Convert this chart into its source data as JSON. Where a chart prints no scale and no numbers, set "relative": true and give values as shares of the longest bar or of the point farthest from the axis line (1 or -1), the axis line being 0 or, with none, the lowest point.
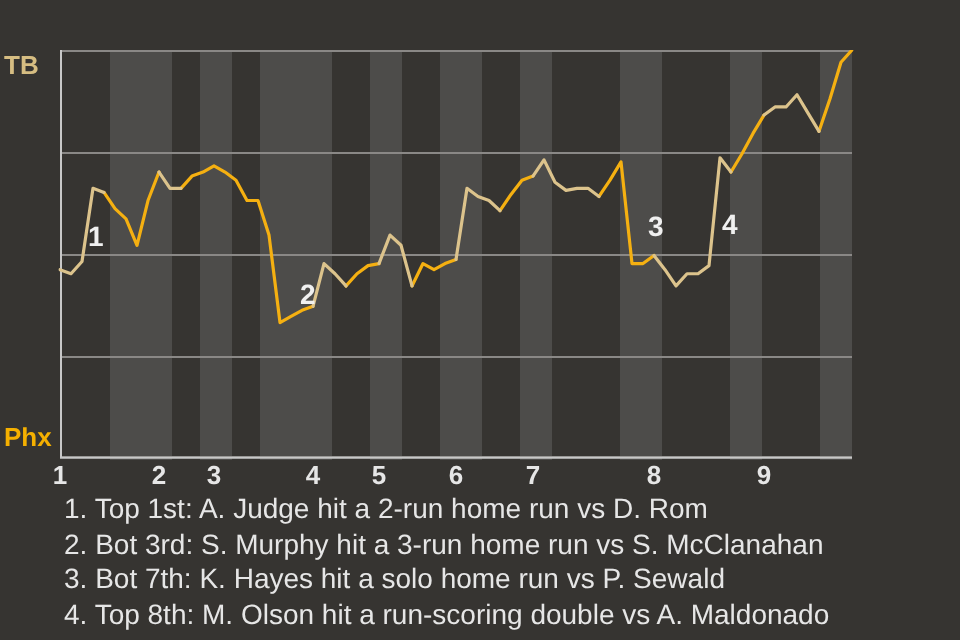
{
  "chart_data": {
    "type": "line",
    "legend": false,
    "marker": "none",
    "grid": "y",
    "relative": true,
    "categories": [
      "1",
      null,
      null,
      null,
      null,
      null,
      null,
      null,
      null,
      "2",
      null,
      null,
      null,
      null,
      "3",
      null,
      null,
      null,
      null,
      null,
      null,
      null,
      null,
      "4",
      null,
      null,
      null,
      null,
      null,
      "5",
      null,
      null,
      null,
      null,
      null,
      null,
      "6",
      null,
      null,
      null,
      null,
      null,
      null,
      "7",
      null,
      null,
      null,
      null,
      null,
      null,
      null,
      null,
      null,
      null,
      "8",
      null,
      null,
      null,
      null,
      null,
      null,
      null,
      null,
      null,
      "9",
      null,
      null,
      null,
      null,
      null,
      null,
      null,
      null
    ],
    "series": [
      {
        "color": "#dcc38c",
        "values": [
          0.46,
          0.45,
          0.48,
          0.66,
          0.65,
          null,
          null,
          null,
          null,
          0.7,
          0.66,
          0.66,
          null,
          null,
          null,
          null,
          null,
          null,
          null,
          null,
          null,
          null,
          null,
          0.37,
          0.475,
          0.45,
          0.42,
          null,
          null,
          0.475,
          0.545,
          0.52,
          0.42,
          null,
          null,
          null,
          0.485,
          0.66,
          0.64,
          0.63,
          0.605,
          null,
          null,
          0.69,
          0.73,
          0.675,
          0.655,
          0.66,
          0.66,
          0.64,
          null,
          null,
          null,
          null,
          0.495,
          0.46,
          0.42,
          0.45,
          0.45,
          0.47,
          0.735,
          0.7,
          null,
          null,
          0.84,
          0.86,
          0.86,
          0.89,
          0.845,
          0.8,
          null,
          null,
          null
        ]
      },
      {
        "color": "#f5b011",
        "values": [
          null,
          null,
          null,
          null,
          0.65,
          0.61,
          0.585,
          0.52,
          0.63,
          0.7,
          null,
          0.66,
          0.69,
          0.7,
          0.715,
          0.7,
          0.68,
          0.63,
          0.63,
          0.545,
          0.33,
          0.345,
          0.36,
          0.37,
          null,
          null,
          0.42,
          0.45,
          0.47,
          0.475,
          null,
          null,
          0.42,
          0.475,
          0.46,
          0.475,
          0.485,
          null,
          null,
          null,
          0.605,
          0.645,
          0.68,
          0.69,
          null,
          null,
          null,
          null,
          null,
          0.64,
          0.68,
          0.725,
          0.475,
          0.475,
          0.495,
          null,
          null,
          null,
          null,
          null,
          null,
          0.7,
          0.745,
          0.795,
          0.84,
          null,
          null,
          null,
          null,
          0.8,
          0.88,
          0.97,
          1
        ]
      }
    ],
    "annotations": [
      "TB",
      "Phx",
      "1",
      "2",
      "3",
      "4",
      "1. Top 1st: A. Judge hit a 2-run home run vs D. Rom",
      "2. Bot 3rd: S. Murphy hit a 3-run home run vs S. McClanahan",
      "3. Bot 7th: K. Hayes hit a solo home run vs P. Sewald",
      "4. Top 8th: M. Olson hit a run-scoring double vs A. Maldonado"
    ]
  }
}
